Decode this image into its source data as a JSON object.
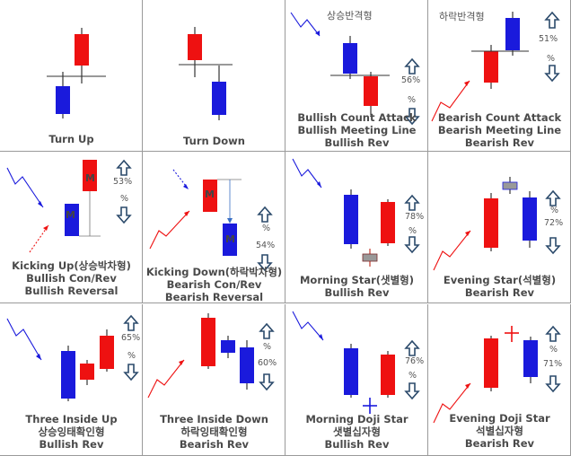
{
  "colors": {
    "bull": "#ee1111",
    "bear": "#1a1adc",
    "doji": "#999999",
    "line": "#333333",
    "arrow": "#2b4a6b",
    "grid": "#9a9a9a"
  },
  "cells": [
    {
      "id": "turn-up",
      "labels": [
        "Turn Up"
      ]
    },
    {
      "id": "turn-down",
      "labels": [
        "Turn Down"
      ]
    },
    {
      "id": "bullish-counter",
      "kr_title": "상승반격형",
      "labels": [
        "Bullish Count Attack",
        "Bullish Meeting Line",
        "Bullish Rev"
      ],
      "pct_top": "",
      "pct_mid": "56%",
      "pct_low": "%"
    },
    {
      "id": "bearish-counter",
      "kr_title": "하락반격형",
      "labels": [
        "Bearish Count Attack",
        "Bearish Meeting Line",
        "Bearish Rev"
      ],
      "pct_top": "51%",
      "pct_mid": "%",
      "pct_low": ""
    },
    {
      "id": "kicking-up",
      "labels": [
        "Kicking Up(상승박차형)",
        "Bullish Con/Rev",
        "Bullish Reversal"
      ],
      "pct_top": "53%",
      "pct_mid": "%",
      "pct_low": "",
      "m1": "M",
      "m2": "M"
    },
    {
      "id": "kicking-down",
      "labels": [
        "Kicking Down(하락박차형)",
        "Bearish Con/Rev",
        "Bearish Reversal"
      ],
      "pct_top": "%",
      "pct_mid": "54%",
      "pct_low": "",
      "m1": "M",
      "m2": "M"
    },
    {
      "id": "morning-star",
      "labels": [
        "Morning Star(샛별형)",
        "Bullish Rev"
      ],
      "pct_top": "78%",
      "pct_mid": "%",
      "pct_low": ""
    },
    {
      "id": "evening-star",
      "labels": [
        "Evening Star(석별형)",
        "Bearish Rev"
      ],
      "pct_top": "%",
      "pct_mid": "72%",
      "pct_low": ""
    },
    {
      "id": "three-inside-up",
      "labels": [
        "Three Inside Up",
        "상승잉태확인형",
        "Bullish Rev"
      ],
      "pct_top": "65%",
      "pct_mid": "%",
      "pct_low": ""
    },
    {
      "id": "three-inside-down",
      "labels": [
        "Three Inside Down",
        "하락잉태확인형",
        "Bearish Rev"
      ],
      "pct_top": "%",
      "pct_mid": "60%",
      "pct_low": ""
    },
    {
      "id": "morning-doji-star",
      "labels": [
        "Morning Doji Star",
        "샛별십자형",
        "Bullish Rev"
      ],
      "pct_top": "76%",
      "pct_mid": "%",
      "pct_low": ""
    },
    {
      "id": "evening-doji-star",
      "labels": [
        "Evening Doji Star",
        "석별십자형",
        "Bearish Rev"
      ],
      "pct_top": "%",
      "pct_mid": "71%",
      "pct_low": ""
    }
  ]
}
